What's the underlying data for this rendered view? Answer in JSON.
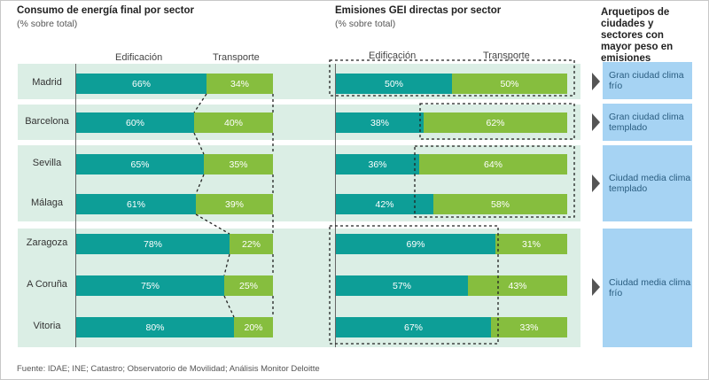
{
  "left_title": "Consumo de energía final por sector",
  "left_subtitle": "(% sobre total)",
  "mid_title": "Emisiones GEI directas por sector",
  "mid_subtitle": "(% sobre total)",
  "right_title": "Arquetipos de ciudades y sectores con mayor peso en emisiones",
  "col_edificacion": "Edificación",
  "col_transporte": "Transporte",
  "footer": "Fuente: IDAE; INE; Catastro; Observatorio de Movilidad; Análisis Monitor Deloitte",
  "colors": {
    "edificacion": "#0d9e97",
    "transporte": "#86be3e",
    "band": "#dbeee5",
    "archetype": "#a6d3f3"
  },
  "archetypes": [
    "Gran ciudad clima frío",
    "Gran ciudad clima templado",
    "Ciudad media clima templado",
    "Ciudad media clima frío"
  ],
  "chart_data": [
    {
      "type": "bar",
      "stacked": true,
      "orientation": "horizontal",
      "title": "Consumo de energía final por sector",
      "subtitle": "(% sobre total)",
      "categories": [
        "Madrid",
        "Barcelona",
        "Sevilla",
        "Málaga",
        "Zaragoza",
        "A Coruña",
        "Vitoria"
      ],
      "series": [
        {
          "name": "Edificación",
          "values": [
            66,
            60,
            65,
            61,
            78,
            75,
            80
          ]
        },
        {
          "name": "Transporte",
          "values": [
            34,
            40,
            35,
            39,
            22,
            25,
            20
          ]
        }
      ],
      "unit": "%"
    },
    {
      "type": "bar",
      "stacked": true,
      "orientation": "horizontal",
      "title": "Emisiones GEI directas por sector",
      "subtitle": "(% sobre total)",
      "categories": [
        "Madrid",
        "Barcelona",
        "Sevilla",
        "Málaga",
        "Zaragoza",
        "A Coruña",
        "Vitoria"
      ],
      "series": [
        {
          "name": "Edificación",
          "values": [
            50,
            38,
            36,
            42,
            69,
            57,
            67
          ]
        },
        {
          "name": "Transporte",
          "values": [
            50,
            62,
            64,
            58,
            31,
            43,
            33
          ]
        }
      ],
      "unit": "%"
    }
  ]
}
